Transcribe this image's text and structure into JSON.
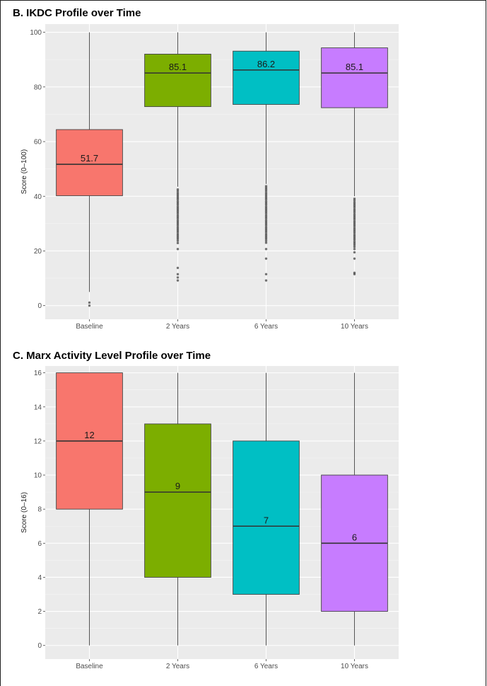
{
  "panels": {
    "b": {
      "title": "B.  IKDC Profile over Time"
    },
    "c": {
      "title": "C.  Marx Activity Level Profile over Time"
    }
  },
  "chart_data": [
    {
      "type": "box",
      "title": "B.  IKDC Profile over Time",
      "ylabel": "Score (0–100)",
      "xlabel": "",
      "ylim": [
        -5,
        103
      ],
      "yticks": [
        0,
        20,
        40,
        60,
        80,
        100
      ],
      "grid": true,
      "categories": [
        "Baseline",
        "2 Years",
        "6 Years",
        "10 Years"
      ],
      "colors": [
        "#F8766D",
        "#7CAE00",
        "#00BFC4",
        "#C77CFF"
      ],
      "boxes": [
        {
          "category": "Baseline",
          "min": 5,
          "q1": 40.2,
          "median": 51.7,
          "q3": 64.4,
          "max": 100,
          "median_label": "51.7",
          "outliers": [
            1.1,
            0
          ]
        },
        {
          "category": "2 Years",
          "min": 43.5,
          "q1": 72.8,
          "median": 85.1,
          "q3": 92,
          "max": 100,
          "median_label": "85.1",
          "outliers": [
            42.5,
            41.9,
            41.2,
            40.6,
            40,
            39.4,
            38.8,
            38.1,
            37.5,
            36.9,
            36.2,
            35.6,
            35,
            34.4,
            33.8,
            33.1,
            32.5,
            31.9,
            31.2,
            30.6,
            30,
            29.4,
            28.7,
            28.1,
            27.5,
            26.9,
            26.2,
            25.6,
            25,
            24.4,
            23.7,
            22.9,
            20.7,
            13.8,
            11.5,
            10.3,
            9.2
          ]
        },
        {
          "category": "6 Years",
          "min": 44.5,
          "q1": 73.6,
          "median": 86.2,
          "q3": 93.1,
          "max": 100,
          "median_label": "86.2",
          "outliers": [
            43.7,
            43.1,
            42.5,
            41.9,
            41.2,
            40.6,
            40,
            39.4,
            38.8,
            38.1,
            37.5,
            36.9,
            36.2,
            35.6,
            35,
            34.4,
            33.8,
            33.1,
            32.5,
            31.9,
            31.2,
            30.6,
            30,
            29.4,
            28.7,
            28.1,
            27.5,
            26.9,
            26.2,
            25.6,
            25,
            24.4,
            23.7,
            23,
            20.7,
            17.2,
            11.5,
            9.2
          ]
        },
        {
          "category": "10 Years",
          "min": 40,
          "q1": 72.4,
          "median": 85.1,
          "q3": 94.3,
          "max": 100,
          "median_label": "85.1",
          "outliers": [
            39.1,
            38.5,
            37.8,
            37.2,
            36.6,
            36,
            35.3,
            34.7,
            34.1,
            33.4,
            32.8,
            32.2,
            31.6,
            30.9,
            30.3,
            29.7,
            29.1,
            28.4,
            27.8,
            27.2,
            26.6,
            25.9,
            25.3,
            24.7,
            24.1,
            23.4,
            22.8,
            22.2,
            21.5,
            20.7,
            19.5,
            17.2,
            12,
            11.5
          ]
        }
      ]
    },
    {
      "type": "box",
      "title": "C.  Marx Activity Level Profile over Time",
      "ylabel": "Score (0–16)",
      "xlabel": "",
      "ylim": [
        -0.8,
        16.4
      ],
      "yticks": [
        0,
        2,
        4,
        6,
        8,
        10,
        12,
        14,
        16
      ],
      "grid": true,
      "categories": [
        "Baseline",
        "2 Years",
        "6 Years",
        "10 Years"
      ],
      "colors": [
        "#F8766D",
        "#7CAE00",
        "#00BFC4",
        "#C77CFF"
      ],
      "boxes": [
        {
          "category": "Baseline",
          "min": 0,
          "q1": 8,
          "median": 12,
          "q3": 16,
          "max": 16,
          "median_label": "12",
          "outliers": []
        },
        {
          "category": "2 Years",
          "min": 0,
          "q1": 4,
          "median": 9,
          "q3": 13,
          "max": 16,
          "median_label": "9",
          "outliers": []
        },
        {
          "category": "6 Years",
          "min": 0,
          "q1": 3,
          "median": 7,
          "q3": 12,
          "max": 16,
          "median_label": "7",
          "outliers": []
        },
        {
          "category": "10 Years",
          "min": 0,
          "q1": 2,
          "median": 6,
          "q3": 10,
          "max": 16,
          "median_label": "6",
          "outliers": []
        }
      ]
    }
  ]
}
